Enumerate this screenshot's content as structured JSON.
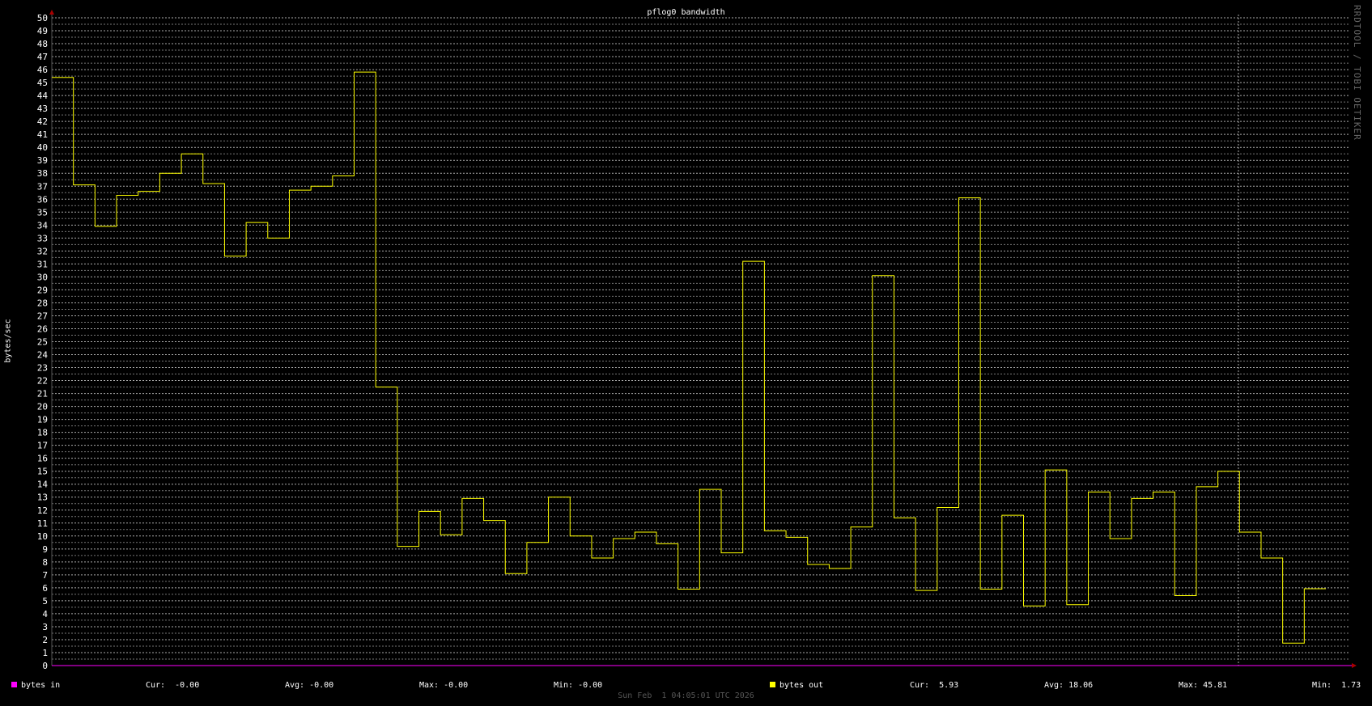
{
  "chart_data": {
    "type": "line",
    "title": "pflog0 bandwidth",
    "ylabel": "bytes/sec",
    "ylim": [
      0,
      50
    ],
    "yticks": [
      0,
      1,
      2,
      3,
      4,
      5,
      6,
      7,
      8,
      9,
      10,
      11,
      12,
      13,
      14,
      15,
      16,
      17,
      18,
      19,
      20,
      21,
      22,
      23,
      24,
      25,
      26,
      27,
      28,
      29,
      30,
      31,
      32,
      33,
      34,
      35,
      36,
      37,
      38,
      39,
      40,
      41,
      42,
      43,
      44,
      45,
      46,
      47,
      48,
      49,
      50
    ],
    "grid": true,
    "step": true,
    "series": [
      {
        "name": "bytes in",
        "color": "#ff00ff",
        "values": [
          0
        ]
      },
      {
        "name": "bytes out",
        "color": "#ffff00",
        "values": [
          45.4,
          37.1,
          33.9,
          36.3,
          36.6,
          38.0,
          39.5,
          37.2,
          31.6,
          34.2,
          33.0,
          36.7,
          37.0,
          37.8,
          45.81,
          21.5,
          9.2,
          11.9,
          10.1,
          12.9,
          11.2,
          7.1,
          9.5,
          13.0,
          10.0,
          8.3,
          9.8,
          10.3,
          9.4,
          5.9,
          13.6,
          8.7,
          31.2,
          10.4,
          9.9,
          7.8,
          7.5,
          10.7,
          30.1,
          11.4,
          5.8,
          12.2,
          36.1,
          5.9,
          11.6,
          4.6,
          15.1,
          4.7,
          13.4,
          9.8,
          12.9,
          13.4,
          5.4,
          13.8,
          15.0,
          10.3,
          8.3,
          1.73,
          5.93
        ]
      }
    ],
    "legend": [
      {
        "name": "bytes in",
        "color": "#ff00ff",
        "cur": "Cur:  -0.00",
        "avg": "Avg: -0.00",
        "max": "Max: -0.00",
        "min": "Min: -0.00"
      },
      {
        "name": "bytes out",
        "color": "#ffff00",
        "cur": "Cur:  5.93",
        "avg": "Avg: 18.06",
        "max": "Max: 45.81",
        "min": "Min:  1.73"
      }
    ],
    "legend_placement": "bottom",
    "timestamp": "Sun Feb  1 04:05:01 UTC 2026",
    "watermark": "RRDTOOL / TOBI OETIKER"
  }
}
